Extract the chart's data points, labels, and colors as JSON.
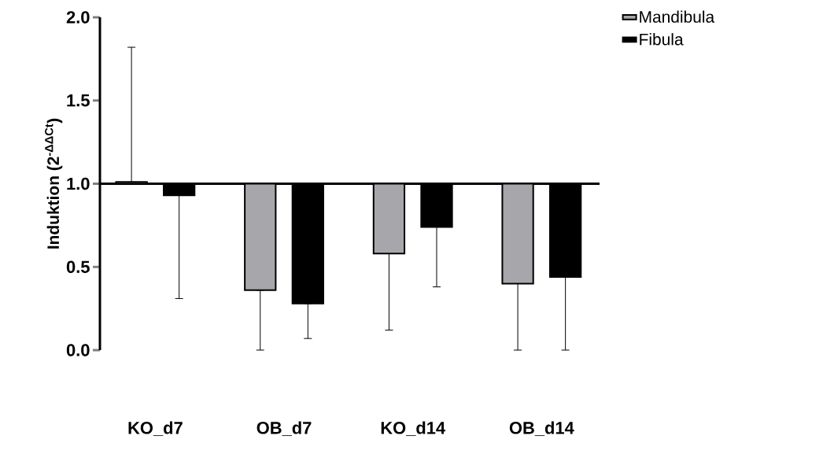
{
  "chart_data": {
    "type": "bar",
    "ylabel": "Induktion (2$^{-ΔΔCt}$)",
    "categories": [
      "KO_d7",
      "OB_d7",
      "KO_d14",
      "OB_d14"
    ],
    "series": [
      {
        "name": "Mandibula",
        "color": "#a7a7ab",
        "base": [
          1,
          1,
          1,
          1
        ],
        "values": [
          0.01,
          -0.64,
          -0.42,
          -0.6
        ],
        "errors": [
          [
            1.01,
            1.82
          ],
          [
            0,
            0.36
          ],
          [
            0.12,
            0.58
          ],
          [
            0,
            0.4
          ]
        ]
      },
      {
        "name": "Fibula",
        "color": "#000000",
        "base": [
          1,
          1,
          1,
          1
        ],
        "values": [
          -0.07,
          -0.72,
          -0.26,
          -0.56
        ],
        "errors": [
          [
            0.31,
            0.93
          ],
          [
            0.07,
            0.28
          ],
          [
            0.38,
            0.74
          ],
          [
            0,
            0.44
          ]
        ]
      }
    ],
    "ylim": [
      0,
      2
    ],
    "yticks": [
      {
        "value": 0,
        "label": "0.0"
      },
      {
        "value": 0.5,
        "label": "0.5"
      },
      {
        "value": 1,
        "label": "1.0"
      },
      {
        "value": 1.5,
        "label": "1.5"
      },
      {
        "value": 2,
        "label": "2.0"
      }
    ],
    "ref_lines": [
      {
        "axis": "y",
        "value": 1
      }
    ],
    "legend": "top right"
  }
}
